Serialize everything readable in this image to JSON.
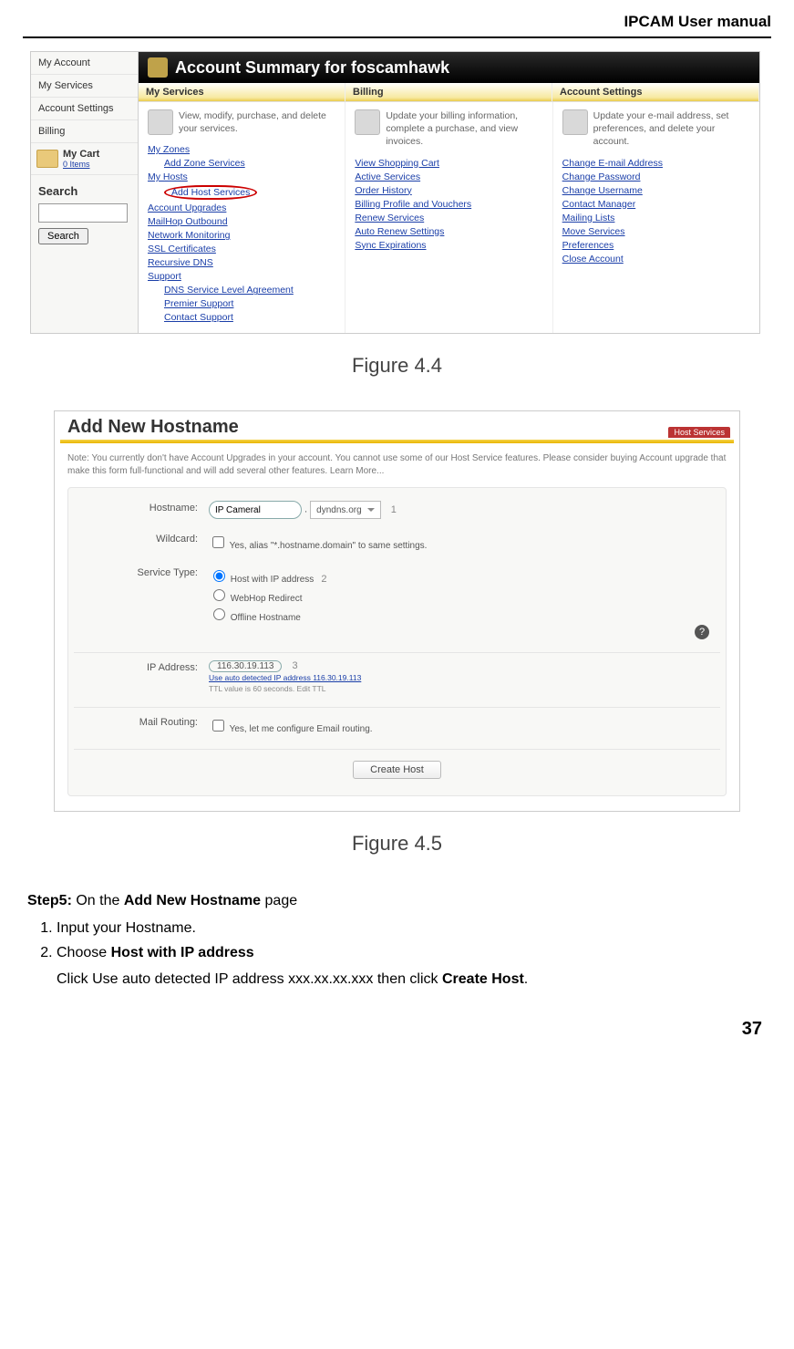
{
  "doc": {
    "header": "IPCAM User manual",
    "page_number": "37",
    "step_label": "Step5:",
    "step_text_1": " On the ",
    "step_bold_1": "Add New Hostname",
    "step_text_2": " page",
    "li1": "Input your Hostname.",
    "li2_a": "Choose ",
    "li2_b": "Host with IP address",
    "after": "Click Use auto detected IP address xxx.xx.xx.xxx then click ",
    "after_b": "Create Host",
    "after_c": "."
  },
  "fig1": {
    "caption": "Figure 4.4",
    "title": "Account Summary for foscamhawk",
    "sidebar": {
      "items": [
        "My Account",
        "My Services",
        "Account Settings",
        "Billing"
      ],
      "cart_label": "My Cart",
      "cart_sub": "0 Items",
      "search_h": "Search",
      "search_btn": "Search"
    },
    "tabs": [
      "My Services",
      "Billing",
      "Account Settings"
    ],
    "cols": [
      {
        "desc": "View, modify, purchase, and delete your services.",
        "links": [
          {
            "t": "My Zones",
            "ind": false
          },
          {
            "t": "Add Zone Services",
            "ind": true
          },
          {
            "t": "My Hosts",
            "ind": false
          },
          {
            "t": "Add Host Services",
            "ind": true,
            "circled": true
          },
          {
            "t": "Account Upgrades",
            "ind": false
          },
          {
            "t": "MailHop Outbound",
            "ind": false
          },
          {
            "t": "Network Monitoring",
            "ind": false
          },
          {
            "t": "SSL Certificates",
            "ind": false
          },
          {
            "t": "Recursive DNS",
            "ind": false
          },
          {
            "t": "Support",
            "ind": false
          },
          {
            "t": "DNS Service Level Agreement",
            "ind": true
          },
          {
            "t": "Premier Support",
            "ind": true
          },
          {
            "t": "Contact Support",
            "ind": true
          }
        ]
      },
      {
        "desc": "Update your billing information, complete a purchase, and view invoices.",
        "links": [
          {
            "t": "View Shopping Cart"
          },
          {
            "t": "Active Services"
          },
          {
            "t": "Order History"
          },
          {
            "t": "Billing Profile and Vouchers"
          },
          {
            "t": "Renew Services"
          },
          {
            "t": "Auto Renew Settings"
          },
          {
            "t": "Sync Expirations"
          }
        ]
      },
      {
        "desc": "Update your e-mail address, set preferences, and delete your account.",
        "links": [
          {
            "t": "Change E-mail Address"
          },
          {
            "t": "Change Password"
          },
          {
            "t": "Change Username"
          },
          {
            "t": "Contact Manager"
          },
          {
            "t": "Mailing Lists"
          },
          {
            "t": "Move Services"
          },
          {
            "t": "Preferences"
          },
          {
            "t": "Close Account"
          }
        ]
      }
    ]
  },
  "fig2": {
    "caption": "Figure 4.5",
    "title": "Add New Hostname",
    "tab": "Host Services",
    "note": "Note: You currently don't have Account Upgrades in your account. You cannot use some of our Host Service features. Please consider buying Account upgrade that make this form full-functional and will add several other features. Learn More...",
    "labels": {
      "hostname": "Hostname:",
      "wildcard": "Wildcard:",
      "service": "Service Type:",
      "ip": "IP Address:",
      "mail": "Mail Routing:"
    },
    "hostname_value": "IP Cameral",
    "hostname_domain": "dyndns.org",
    "wildcard_text": "Yes, alias \"*.hostname.domain\" to same settings.",
    "service_opts": [
      "Host with IP address",
      "WebHop Redirect",
      "Offline Hostname"
    ],
    "ip_value": "116.30.19.113",
    "ip_auto": "Use auto detected IP address 116.30.19.113",
    "ip_ttl": "TTL value is 60 seconds. Edit TTL",
    "mail_text": "Yes, let me configure Email routing.",
    "button": "Create Host",
    "annot": {
      "a": "1",
      "b": "2",
      "c": "3"
    }
  }
}
